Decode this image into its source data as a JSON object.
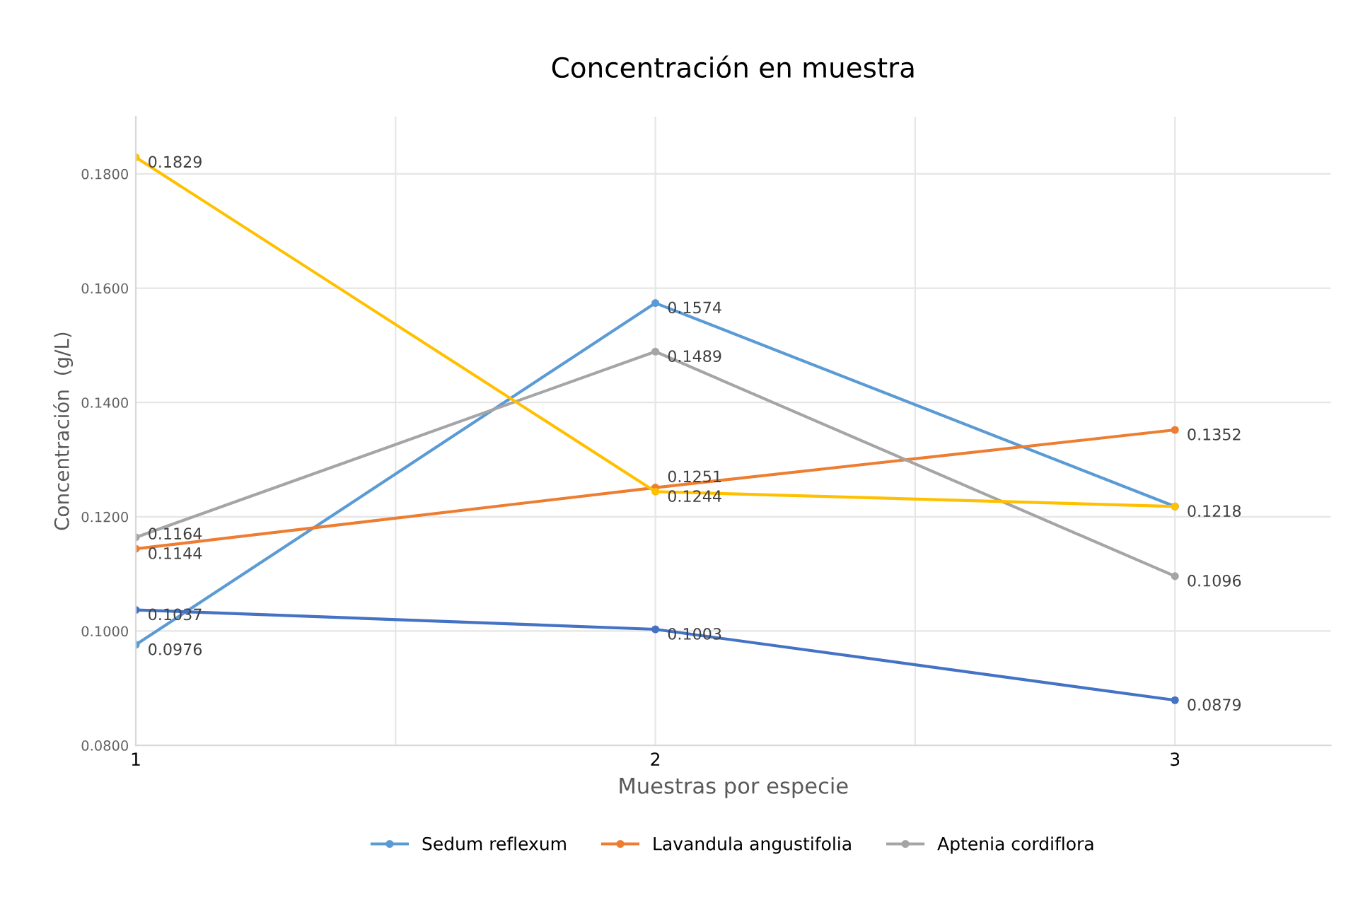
{
  "chart_data": {
    "type": "line",
    "title": "Concentración en muestra",
    "xlabel": "Muestras por especie",
    "ylabel": "Concentración  (g/L)",
    "x": [
      1,
      2,
      3
    ],
    "series": [
      {
        "name": "Sedum reflexum",
        "color": "#5b9bd5",
        "values": [
          0.0976,
          0.1574,
          0.1218
        ],
        "value_labels": [
          "0.0976",
          "0.1574",
          "0.1218"
        ]
      },
      {
        "name": "Lavandula angustifolia",
        "color": "#ed7d31",
        "values": [
          0.1144,
          0.1251,
          0.1352
        ],
        "value_labels": [
          "0.1144",
          "0.1251",
          "0.1352"
        ]
      },
      {
        "name": "Aptenia cordiflora",
        "color": "#a5a5a5",
        "values": [
          0.1164,
          0.1489,
          0.1096
        ],
        "value_labels": [
          "0.1164",
          "0.1489",
          "0.1096"
        ]
      },
      {
        "color": "#ffc000",
        "values": [
          0.1829,
          0.1244,
          0.1218
        ],
        "value_labels": [
          "0.1829",
          "0.1244",
          null
        ]
      },
      {
        "color": "#4472c4",
        "values": [
          0.1037,
          0.1003,
          0.0879
        ],
        "value_labels": [
          "0.1037",
          "0.1003",
          "0.0879"
        ]
      }
    ],
    "xlim": [
      1,
      3.3
    ],
    "xticks": [
      1,
      {
        "value": 1.5,
        "label": null
      },
      2,
      {
        "value": 2.5,
        "label": null
      },
      3
    ],
    "ylim": [
      0.08,
      0.19
    ],
    "yticks": [
      {
        "value": 0.08,
        "label": "0.0800"
      },
      {
        "value": 0.1,
        "label": "0.1000"
      },
      {
        "value": 0.12,
        "label": "0.1200"
      },
      {
        "value": 0.14,
        "label": "0.1400"
      },
      {
        "value": 0.16,
        "label": "0.1600"
      },
      {
        "value": 0.18,
        "label": "0.1800"
      }
    ],
    "grid": true,
    "legend": "bottom",
    "marker": "circle",
    "line_style": "solid"
  }
}
